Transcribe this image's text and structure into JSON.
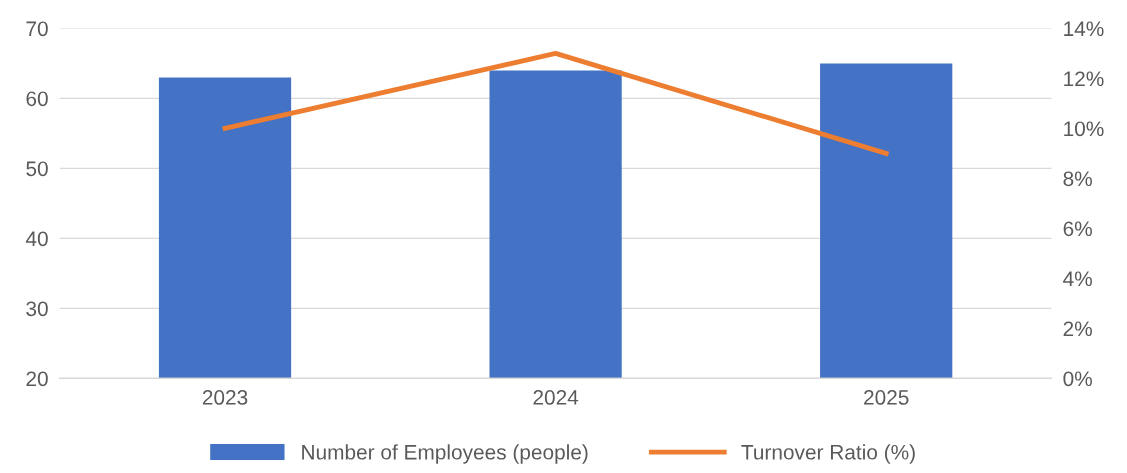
{
  "chart_data": {
    "type": "bar",
    "categories": [
      "2023",
      "2024",
      "2025"
    ],
    "series": [
      {
        "name": "Number of Employees (people)",
        "color": "#4472c4",
        "values": [
          63,
          64,
          65
        ]
      },
      {
        "name": "Turnover Ratio (%)",
        "type": "line",
        "axis": "y2",
        "color": "#ed7d31",
        "values": [
          10,
          13,
          9
        ]
      }
    ],
    "ylim": [
      20,
      70
    ],
    "yticks": [
      20,
      30,
      40,
      50,
      60,
      70
    ],
    "y2lim": [
      0,
      14
    ],
    "y2ticks": [
      {
        "value": 0,
        "label": "0%"
      },
      {
        "value": 2,
        "label": "2%"
      },
      {
        "value": 4,
        "label": "4%"
      },
      {
        "value": 6,
        "label": "6%"
      },
      {
        "value": 8,
        "label": "8%"
      },
      {
        "value": 10,
        "label": "10%"
      },
      {
        "value": 12,
        "label": "12%"
      },
      {
        "value": 14,
        "label": "14%"
      }
    ],
    "grid": "y",
    "legend": "bottom",
    "marker": "none",
    "line_style": "solid"
  }
}
